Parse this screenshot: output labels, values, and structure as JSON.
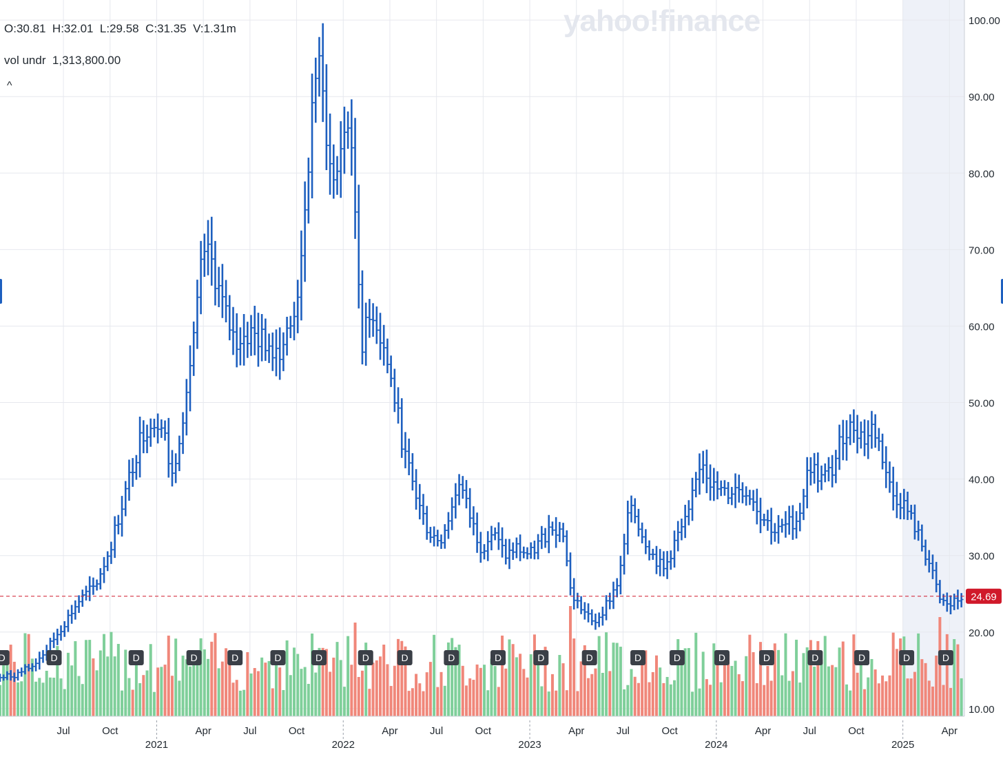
{
  "header": {
    "ohlcv": "O:30.81  H:32.01  L:29.58  C:31.35  V:1.31m",
    "volume_indicator": "vol undr  1,313,800.00",
    "collapse_glyph": "^",
    "watermark": "yahoo!finance"
  },
  "colors": {
    "price_bar": "#1d5fbf",
    "volume_up": "#7fcf9a",
    "volume_down": "#f0877a",
    "last_price": "#d0192a",
    "grid": "#e6e8ee",
    "future_shade": "#eef1f8",
    "dividend_marker": "#3a3f47"
  },
  "chart_data": {
    "type": "ohlc",
    "y_axis": {
      "ticks": [
        "100.00",
        "90.00",
        "80.00",
        "70.00",
        "60.00",
        "50.00",
        "40.00",
        "30.00",
        "20.00",
        "10.00"
      ],
      "tick_values": [
        100,
        90,
        80,
        70,
        60,
        50,
        40,
        30,
        20,
        10
      ],
      "range": [
        9,
        101
      ],
      "position": "right"
    },
    "x_axis": {
      "month_ticks": [
        {
          "label": "Jul",
          "t": 2020.5
        },
        {
          "label": "Oct",
          "t": 2020.75
        },
        {
          "label": "Apr",
          "t": 2021.25
        },
        {
          "label": "Jul",
          "t": 2021.5
        },
        {
          "label": "Oct",
          "t": 2021.75
        },
        {
          "label": "Apr",
          "t": 2022.25
        },
        {
          "label": "Jul",
          "t": 2022.5
        },
        {
          "label": "Oct",
          "t": 2022.75
        },
        {
          "label": "Apr",
          "t": 2023.25
        },
        {
          "label": "Jul",
          "t": 2023.5
        },
        {
          "label": "Oct",
          "t": 2023.75
        },
        {
          "label": "Apr",
          "t": 2024.25
        },
        {
          "label": "Jul",
          "t": 2024.5
        },
        {
          "label": "Oct",
          "t": 2024.75
        },
        {
          "label": "Apr",
          "t": 2025.25
        }
      ],
      "year_ticks": [
        {
          "label": "2021",
          "t": 2021.0
        },
        {
          "label": "2022",
          "t": 2022.0
        },
        {
          "label": "2023",
          "t": 2023.0
        },
        {
          "label": "2024",
          "t": 2024.0
        },
        {
          "label": "2025",
          "t": 2025.0
        }
      ],
      "range": [
        2020.16,
        2025.33
      ]
    },
    "last_price": {
      "value": 24.69,
      "label": "24.69"
    },
    "highlight_range": [
      2025.0,
      2025.33
    ],
    "price_path": [
      [
        2020.16,
        14
      ],
      [
        2020.25,
        14.5
      ],
      [
        2020.33,
        15.5
      ],
      [
        2020.42,
        18
      ],
      [
        2020.5,
        21
      ],
      [
        2020.58,
        24
      ],
      [
        2020.67,
        26
      ],
      [
        2020.75,
        31
      ],
      [
        2020.83,
        38
      ],
      [
        2020.92,
        46
      ],
      [
        2021.0,
        48
      ],
      [
        2021.04,
        46
      ],
      [
        2021.08,
        40
      ],
      [
        2021.13,
        47
      ],
      [
        2021.2,
        58
      ],
      [
        2021.25,
        70
      ],
      [
        2021.3,
        68
      ],
      [
        2021.36,
        62
      ],
      [
        2021.42,
        58
      ],
      [
        2021.5,
        59
      ],
      [
        2021.58,
        58
      ],
      [
        2021.66,
        57
      ],
      [
        2021.72,
        60
      ],
      [
        2021.78,
        68
      ],
      [
        2021.83,
        88
      ],
      [
        2021.86,
        95
      ],
      [
        2021.9,
        88
      ],
      [
        2021.94,
        78
      ],
      [
        2021.98,
        82
      ],
      [
        2022.02,
        88
      ],
      [
        2022.06,
        77
      ],
      [
        2022.1,
        58
      ],
      [
        2022.16,
        62
      ],
      [
        2022.22,
        57
      ],
      [
        2022.28,
        50
      ],
      [
        2022.33,
        43
      ],
      [
        2022.4,
        37
      ],
      [
        2022.46,
        33
      ],
      [
        2022.52,
        32
      ],
      [
        2022.58,
        36
      ],
      [
        2022.62,
        40
      ],
      [
        2022.68,
        35
      ],
      [
        2022.74,
        31
      ],
      [
        2022.8,
        33
      ],
      [
        2022.87,
        30
      ],
      [
        2022.93,
        31
      ],
      [
        2023.0,
        30
      ],
      [
        2023.06,
        32
      ],
      [
        2023.12,
        34
      ],
      [
        2023.18,
        33
      ],
      [
        2023.22,
        25
      ],
      [
        2023.28,
        23
      ],
      [
        2023.34,
        21
      ],
      [
        2023.42,
        24
      ],
      [
        2023.48,
        27
      ],
      [
        2023.54,
        37
      ],
      [
        2023.6,
        33
      ],
      [
        2023.66,
        30
      ],
      [
        2023.72,
        28
      ],
      [
        2023.78,
        32
      ],
      [
        2023.85,
        35
      ],
      [
        2023.92,
        43
      ],
      [
        2023.98,
        39
      ],
      [
        2024.05,
        38
      ],
      [
        2024.12,
        39
      ],
      [
        2024.18,
        38
      ],
      [
        2024.25,
        35
      ],
      [
        2024.32,
        33
      ],
      [
        2024.38,
        34
      ],
      [
        2024.44,
        35
      ],
      [
        2024.5,
        42
      ],
      [
        2024.56,
        40
      ],
      [
        2024.62,
        41
      ],
      [
        2024.68,
        46
      ],
      [
        2024.74,
        47
      ],
      [
        2024.8,
        45
      ],
      [
        2024.84,
        47
      ],
      [
        2024.88,
        44
      ],
      [
        2024.94,
        38
      ],
      [
        2025.0,
        37
      ],
      [
        2025.06,
        34
      ],
      [
        2025.14,
        29
      ],
      [
        2025.2,
        24
      ],
      [
        2025.26,
        23.5
      ],
      [
        2025.33,
        25
      ]
    ],
    "volume": {
      "max": 100,
      "spikes": [
        [
          2023.22,
          100
        ],
        [
          2025.2,
          90
        ],
        [
          2022.07,
          85
        ],
        [
          2021.88,
          62
        ],
        [
          2022.22,
          65
        ]
      ],
      "base": 22
    },
    "dividend_markers": {
      "label": "D",
      "t": [
        2020.17,
        2020.45,
        2020.89,
        2021.2,
        2021.42,
        2021.65,
        2021.87,
        2022.12,
        2022.33,
        2022.58,
        2022.83,
        2023.06,
        2023.32,
        2023.58,
        2023.79,
        2024.03,
        2024.27,
        2024.53,
        2024.78,
        2025.02,
        2025.23
      ]
    }
  }
}
